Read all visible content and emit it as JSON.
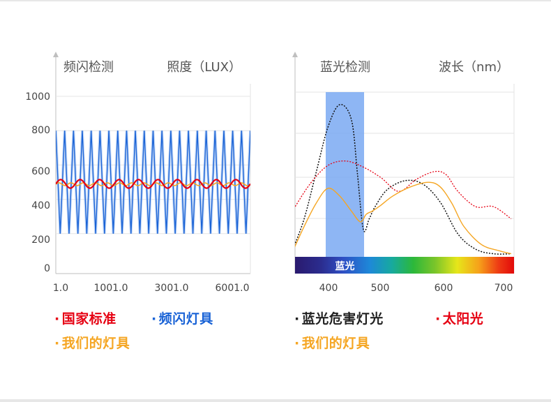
{
  "chart_data": [
    {
      "type": "line",
      "title": "频闪检测",
      "ylabel": "照度（LUX）",
      "y_ticks": [
        "1000",
        "800",
        "600",
        "400",
        "200",
        "0"
      ],
      "x_ticks": [
        "1.0",
        "1001.0",
        "3001.0",
        "6001.0"
      ],
      "grid": true,
      "series": [
        {
          "name": "国家标准",
          "color": "#e60012",
          "oscillation": {
            "center": 490,
            "amplitude": 25,
            "cycles": 10
          }
        },
        {
          "name": "频闪灯具",
          "color": "#1a63d6",
          "oscillation": {
            "min": 200,
            "max": 800,
            "cycles": 22
          }
        },
        {
          "name": "我们的灯具",
          "color": "#f5a623",
          "oscillation": {
            "center": 488,
            "amplitude": 8,
            "cycles": 16
          }
        }
      ]
    },
    {
      "type": "line",
      "title": "蓝光检测",
      "xlabel": "波长（nm）",
      "x_ticks": [
        "400",
        "500",
        "600",
        "700"
      ],
      "highlight": {
        "label": "蓝光",
        "range": [
          400,
          460
        ],
        "color": "#7aa9f2"
      },
      "spectrum_bar": true,
      "grid": true,
      "series": [
        {
          "name": "蓝光危害灯光",
          "color": "#111111",
          "x": [
            340,
            360,
            380,
            400,
            420,
            440,
            450,
            460,
            470,
            480,
            500,
            530,
            560,
            590,
            620,
            650,
            680,
            710
          ],
          "y": [
            0.04,
            0.25,
            0.55,
            0.85,
            1.0,
            0.9,
            0.55,
            0.18,
            0.25,
            0.33,
            0.44,
            0.5,
            0.48,
            0.36,
            0.15,
            0.05,
            0.02,
            0.02
          ]
        },
        {
          "name": "太阳光",
          "color": "#e60012",
          "x": [
            340,
            370,
            400,
            430,
            460,
            490,
            520,
            550,
            580,
            600,
            620,
            650,
            680,
            710
          ],
          "y": [
            0.3,
            0.48,
            0.6,
            0.63,
            0.59,
            0.52,
            0.43,
            0.51,
            0.56,
            0.54,
            0.43,
            0.33,
            0.33,
            0.25
          ]
        },
        {
          "name": "我们的灯具",
          "color": "#f5a623",
          "x": [
            340,
            360,
            380,
            400,
            420,
            440,
            455,
            465,
            475,
            490,
            510,
            540,
            570,
            590,
            610,
            630,
            660,
            690,
            710
          ],
          "y": [
            0.03,
            0.2,
            0.35,
            0.45,
            0.4,
            0.3,
            0.23,
            0.28,
            0.3,
            0.34,
            0.4,
            0.46,
            0.49,
            0.46,
            0.35,
            0.2,
            0.08,
            0.04,
            0.02
          ]
        }
      ]
    }
  ]
}
